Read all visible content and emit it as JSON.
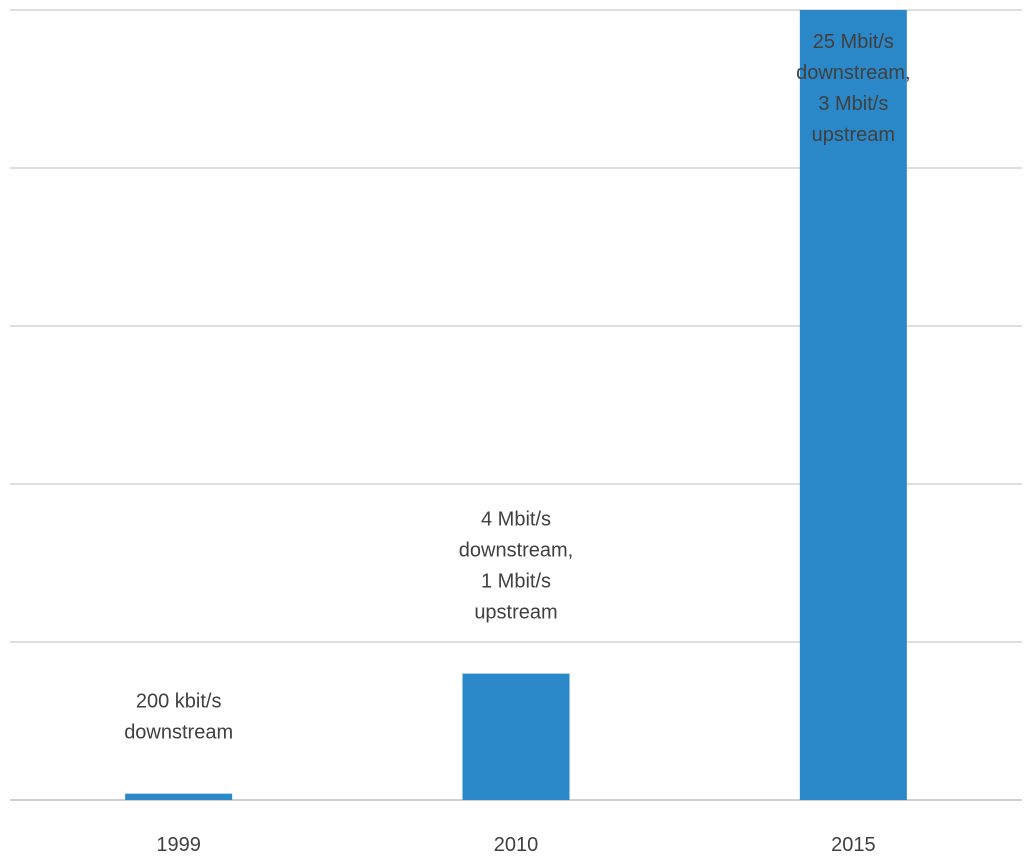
{
  "chart_data": {
    "type": "bar",
    "title": "",
    "xlabel": "",
    "ylabel": "",
    "categories": [
      "1999",
      "2010",
      "2015"
    ],
    "values": [
      0.2,
      4,
      25
    ],
    "value_unit": "Mbit/s downstream",
    "ylim": [
      0,
      25
    ],
    "grid": true,
    "grid_lines": 5,
    "y_tick_labels_visible": false,
    "legend": "none",
    "colors": {
      "bar": "#2a88c8",
      "grid": "#c9c9c9",
      "text": "#404040"
    },
    "data_labels": [
      [
        "200 kbit/s",
        "downstream"
      ],
      [
        "4 Mbit/s",
        "downstream,",
        "1 Mbit/s",
        "upstream"
      ],
      [
        "25 Mbit/s",
        "downstream,",
        "3 Mbit/s",
        "upstream"
      ]
    ]
  }
}
